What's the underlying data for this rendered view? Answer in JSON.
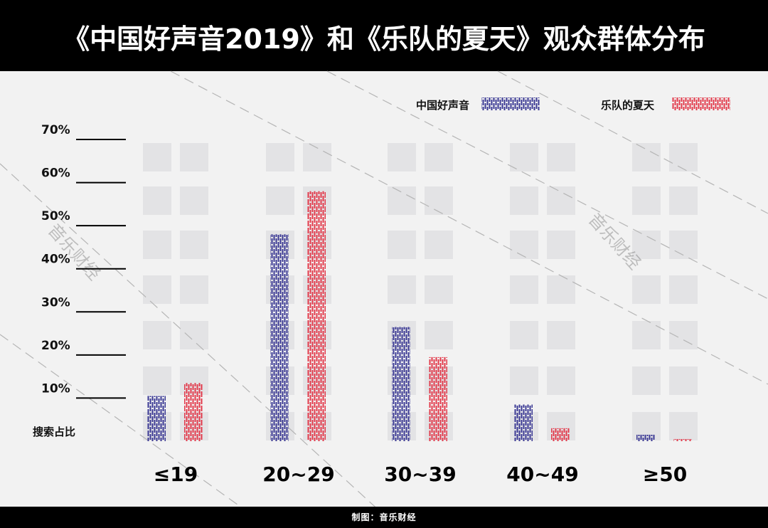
{
  "title": "《中国好声音2019》和《乐队的夏天》观众群体分布",
  "footer": {
    "credit": "制图：音乐财经"
  },
  "watermark": "音乐财经",
  "colors": {
    "voice": "#3b3994",
    "band": "#e23a4b",
    "ghost": "#e3e3e5",
    "background": "#f2f2f2"
  },
  "chart_data": {
    "type": "bar",
    "categories": [
      "≤19",
      "20~29",
      "30~39",
      "40~49",
      "≥50"
    ],
    "series": [
      {
        "name": "中国好声音",
        "values": [
          10.5,
          48.0,
          26.5,
          8.5,
          1.5
        ]
      },
      {
        "name": "乐队的夏天",
        "values": [
          13.5,
          58.0,
          19.5,
          3.0,
          0.5
        ]
      }
    ],
    "y_ticks": [
      "10%",
      "20%",
      "30%",
      "40%",
      "50%",
      "60%",
      "70%"
    ],
    "ylabel": "搜索占比",
    "ylim": [
      0,
      70
    ],
    "legend_position": "top-right",
    "grid": false
  }
}
